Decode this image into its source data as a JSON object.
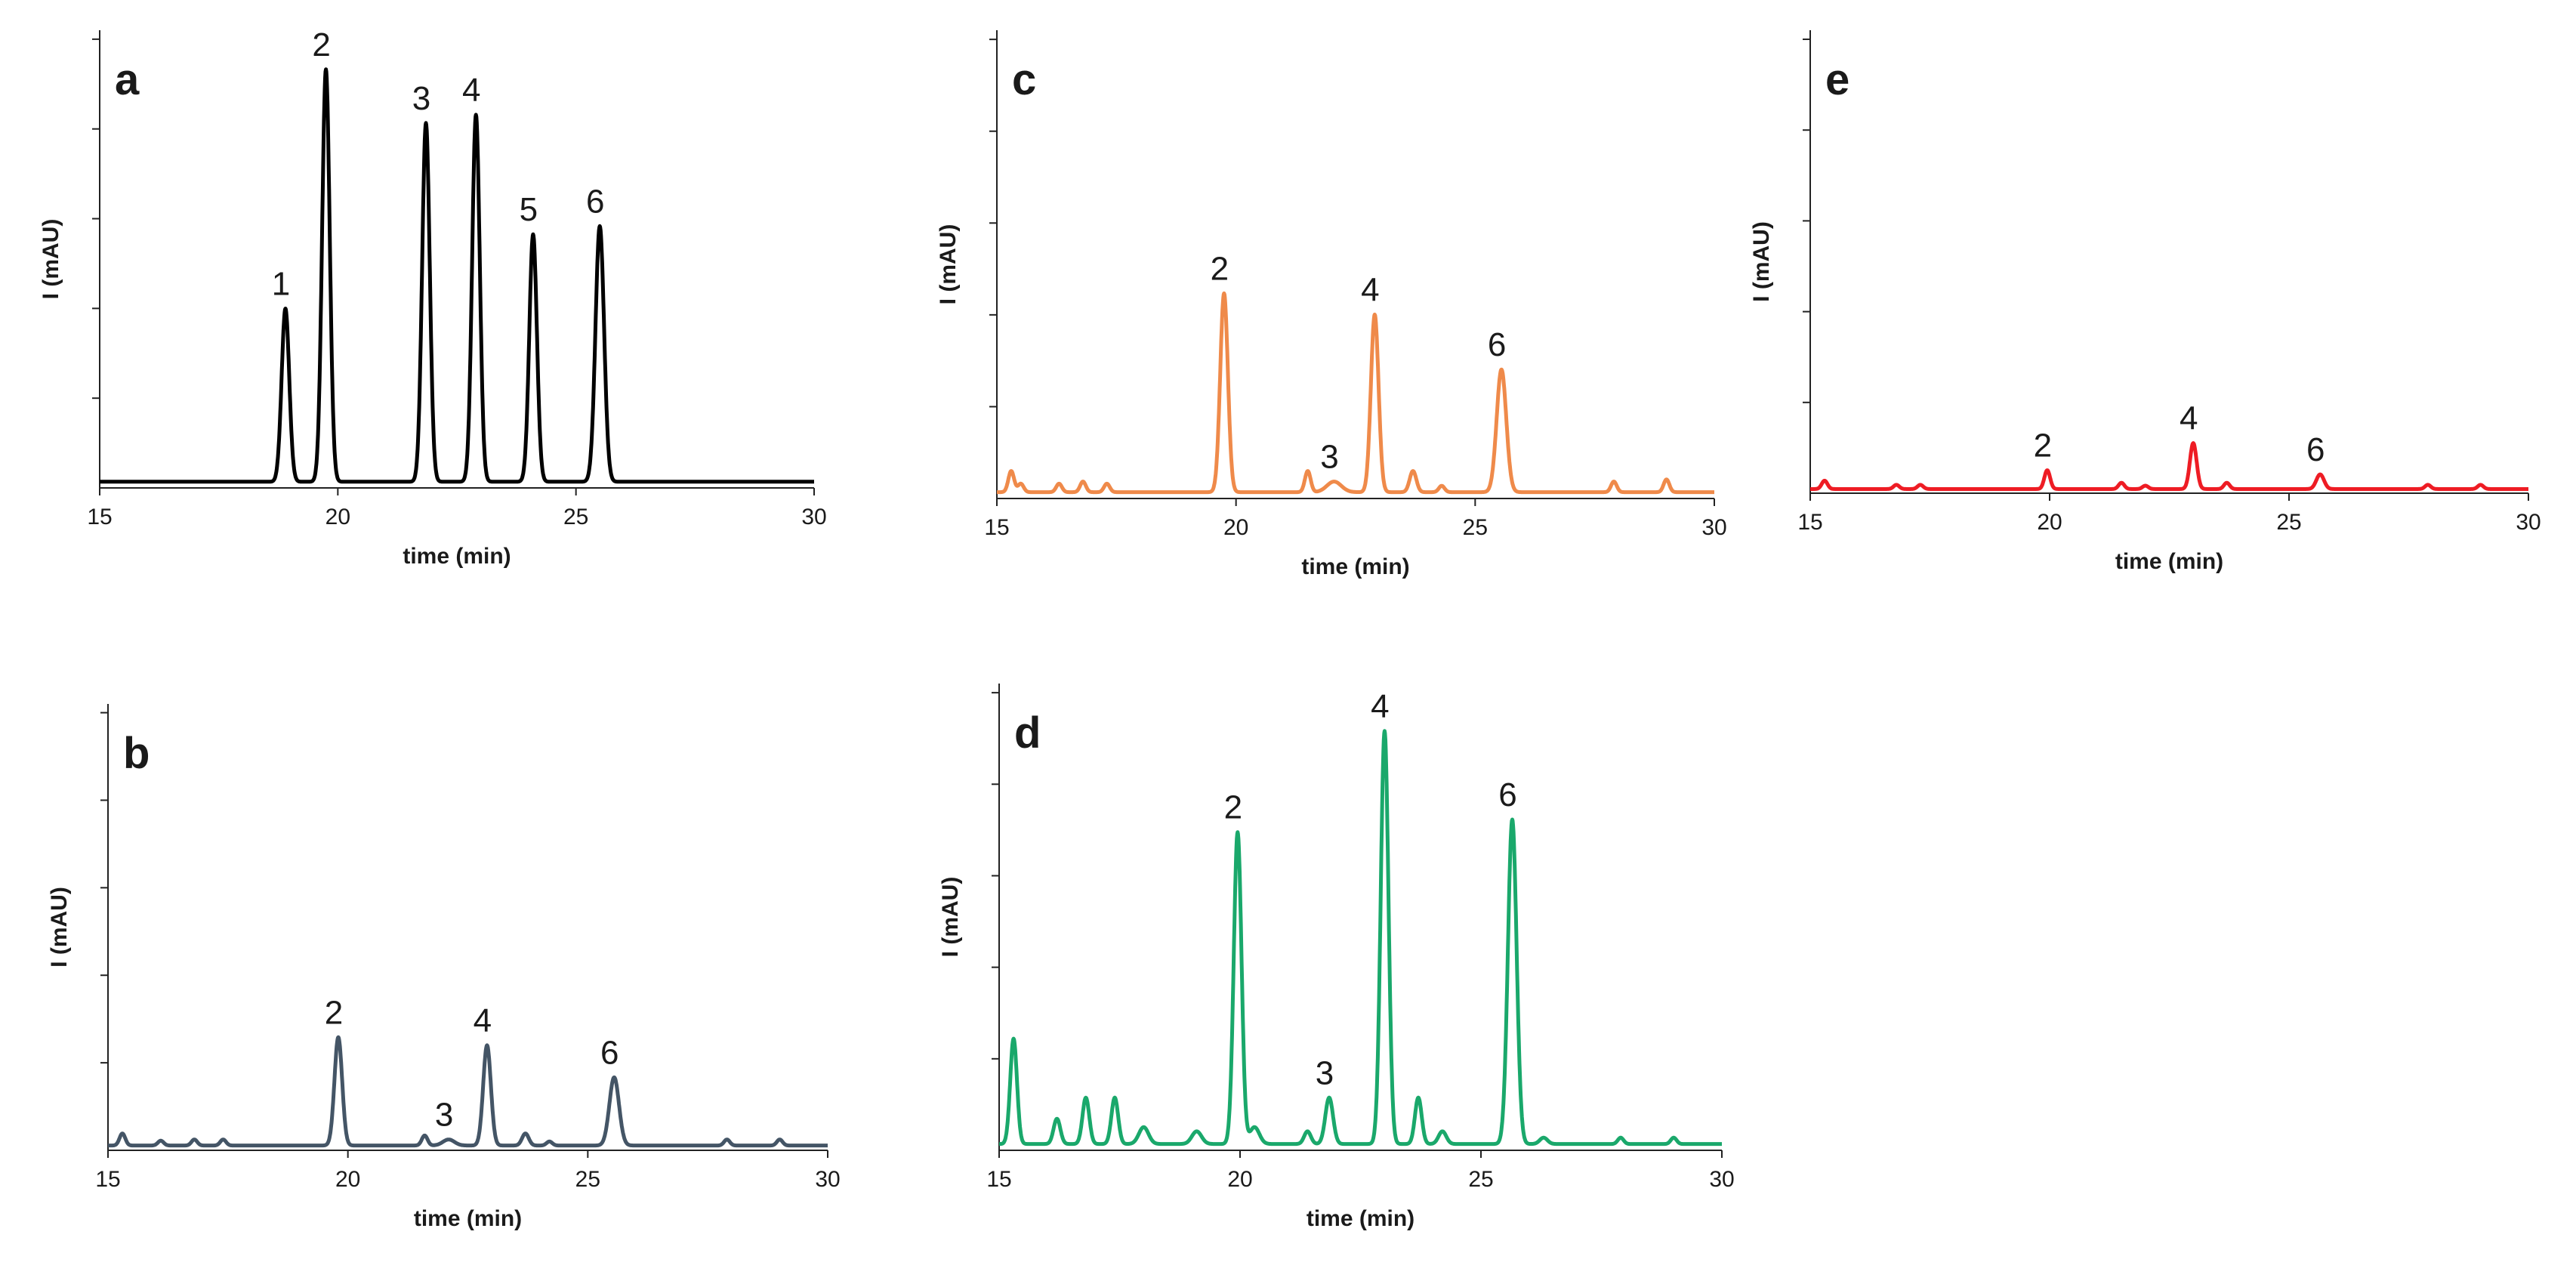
{
  "chart_data": [
    {
      "type": "line",
      "panel": "a",
      "color": "#000000",
      "xlabel": "time (min)",
      "ylabel": "I (mAU)",
      "xlim": [
        15,
        30
      ],
      "ylim": [
        0,
        100
      ],
      "xticks": [
        "15",
        "20",
        "25",
        "30"
      ],
      "y_tick_count": 5,
      "baseline": 1.5,
      "peaks": [
        {
          "label": "1",
          "t": 18.9,
          "height": 42,
          "width": 0.08
        },
        {
          "label": "2",
          "t": 19.75,
          "height": 100,
          "width": 0.08
        },
        {
          "label": "3",
          "t": 21.85,
          "height": 87,
          "width": 0.08
        },
        {
          "label": "4",
          "t": 22.9,
          "height": 89,
          "width": 0.08
        },
        {
          "label": "5",
          "t": 24.1,
          "height": 60,
          "width": 0.08
        },
        {
          "label": "6",
          "t": 25.5,
          "height": 62,
          "width": 0.09
        }
      ],
      "minor_peaks": []
    },
    {
      "type": "line",
      "panel": "b",
      "color": "#445566",
      "xlabel": "time (min)",
      "ylabel": "I (mAU)",
      "xlim": [
        15,
        30
      ],
      "ylim": [
        0,
        100
      ],
      "xticks": [
        "15",
        "20",
        "25",
        "30"
      ],
      "y_tick_count": 5,
      "baseline": 1.2,
      "peaks": [
        {
          "label": "2",
          "t": 19.8,
          "height": 27,
          "width": 0.08
        },
        {
          "label": "3",
          "t": 22.1,
          "height": 1.5,
          "width": 0.12
        },
        {
          "label": "4",
          "t": 22.9,
          "height": 25,
          "width": 0.08
        },
        {
          "label": "6",
          "t": 25.55,
          "height": 17,
          "width": 0.1
        }
      ],
      "minor_peaks": [
        {
          "t": 15.3,
          "height": 3,
          "width": 0.06
        },
        {
          "t": 16.1,
          "height": 1.2,
          "width": 0.06
        },
        {
          "t": 16.8,
          "height": 1.5,
          "width": 0.06
        },
        {
          "t": 17.4,
          "height": 1.5,
          "width": 0.06
        },
        {
          "t": 21.6,
          "height": 2.5,
          "width": 0.06
        },
        {
          "t": 23.7,
          "height": 3,
          "width": 0.07
        },
        {
          "t": 24.2,
          "height": 1,
          "width": 0.06
        },
        {
          "t": 27.9,
          "height": 1.5,
          "width": 0.06
        },
        {
          "t": 29.0,
          "height": 1.5,
          "width": 0.06
        }
      ]
    },
    {
      "type": "line",
      "panel": "c",
      "color": "#ef8a4a",
      "xlabel": "time (min)",
      "ylabel": "I (mAU)",
      "xlim": [
        15,
        30
      ],
      "ylim": [
        0,
        100
      ],
      "xticks": [
        "15",
        "20",
        "25",
        "30"
      ],
      "y_tick_count": 5,
      "baseline": 1.5,
      "peaks": [
        {
          "label": "2",
          "t": 19.75,
          "height": 47,
          "width": 0.08
        },
        {
          "label": "3",
          "t": 22.05,
          "height": 2.5,
          "width": 0.15
        },
        {
          "label": "4",
          "t": 22.9,
          "height": 42,
          "width": 0.08
        },
        {
          "label": "6",
          "t": 25.55,
          "height": 29,
          "width": 0.1
        }
      ],
      "minor_peaks": [
        {
          "t": 15.3,
          "height": 5,
          "width": 0.06
        },
        {
          "t": 15.5,
          "height": 2,
          "width": 0.06
        },
        {
          "t": 16.3,
          "height": 2,
          "width": 0.06
        },
        {
          "t": 16.8,
          "height": 2.5,
          "width": 0.06
        },
        {
          "t": 17.3,
          "height": 2,
          "width": 0.06
        },
        {
          "t": 21.5,
          "height": 5,
          "width": 0.06
        },
        {
          "t": 23.7,
          "height": 5,
          "width": 0.07
        },
        {
          "t": 24.3,
          "height": 1.5,
          "width": 0.06
        },
        {
          "t": 27.9,
          "height": 2.5,
          "width": 0.06
        },
        {
          "t": 29.0,
          "height": 3,
          "width": 0.06
        }
      ]
    },
    {
      "type": "line",
      "panel": "d",
      "color": "#1aa86b",
      "xlabel": "time (min)",
      "ylabel": "I (mAU)",
      "xlim": [
        15,
        30
      ],
      "ylim": [
        0,
        100
      ],
      "xticks": [
        "15",
        "20",
        "25",
        "30"
      ],
      "y_tick_count": 5,
      "baseline": 1.5,
      "peaks": [
        {
          "label": "2",
          "t": 19.95,
          "height": 74,
          "width": 0.08
        },
        {
          "label": "3",
          "t": 21.85,
          "height": 11,
          "width": 0.08
        },
        {
          "label": "4",
          "t": 23.0,
          "height": 98,
          "width": 0.08
        },
        {
          "label": "6",
          "t": 25.65,
          "height": 77,
          "width": 0.09
        }
      ],
      "minor_peaks": [
        {
          "t": 15.3,
          "height": 25,
          "width": 0.07
        },
        {
          "t": 16.2,
          "height": 6,
          "width": 0.07
        },
        {
          "t": 16.8,
          "height": 11,
          "width": 0.07
        },
        {
          "t": 17.4,
          "height": 11,
          "width": 0.07
        },
        {
          "t": 18.0,
          "height": 4,
          "width": 0.1
        },
        {
          "t": 19.1,
          "height": 3,
          "width": 0.1
        },
        {
          "t": 20.3,
          "height": 4,
          "width": 0.1
        },
        {
          "t": 21.4,
          "height": 3,
          "width": 0.07
        },
        {
          "t": 23.7,
          "height": 11,
          "width": 0.07
        },
        {
          "t": 24.2,
          "height": 3,
          "width": 0.08
        },
        {
          "t": 26.3,
          "height": 1.5,
          "width": 0.08
        },
        {
          "t": 27.9,
          "height": 1.5,
          "width": 0.06
        },
        {
          "t": 29.0,
          "height": 1.5,
          "width": 0.06
        }
      ]
    },
    {
      "type": "line",
      "panel": "e",
      "color": "#ee1c24",
      "xlabel": "time (min)",
      "ylabel": "I (mAU)",
      "xlim": [
        15,
        30
      ],
      "ylim": [
        0,
        100
      ],
      "xticks": [
        "15",
        "20",
        "25",
        "30"
      ],
      "y_tick_count": 5,
      "baseline": 1,
      "peaks": [
        {
          "label": "2",
          "t": 19.95,
          "height": 4.5,
          "width": 0.06
        },
        {
          "label": "4",
          "t": 23.0,
          "height": 11,
          "width": 0.07
        },
        {
          "label": "6",
          "t": 25.65,
          "height": 3.5,
          "width": 0.08
        }
      ],
      "minor_peaks": [
        {
          "t": 15.3,
          "height": 2,
          "width": 0.06
        },
        {
          "t": 16.8,
          "height": 1,
          "width": 0.06
        },
        {
          "t": 17.3,
          "height": 1,
          "width": 0.06
        },
        {
          "t": 21.5,
          "height": 1.5,
          "width": 0.06
        },
        {
          "t": 22.0,
          "height": 0.8,
          "width": 0.06
        },
        {
          "t": 23.7,
          "height": 1.5,
          "width": 0.06
        },
        {
          "t": 27.9,
          "height": 1,
          "width": 0.06
        },
        {
          "t": 29.0,
          "height": 1,
          "width": 0.06
        }
      ]
    }
  ]
}
